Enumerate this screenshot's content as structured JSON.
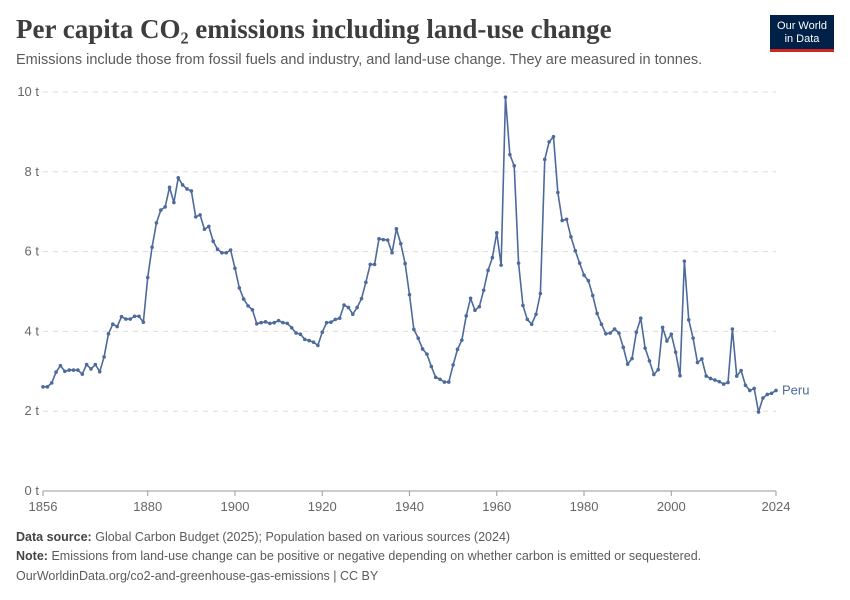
{
  "header": {
    "title": "Per capita CO₂ emissions including land-use change",
    "subtitle": "Emissions include those from fossil fuels and industry, and land-use change. They are measured in tonnes.",
    "logo_line1": "Our World",
    "logo_line2": "in Data"
  },
  "footer": {
    "source_label": "Data source:",
    "source_text": "Global Carbon Budget (2025); Population based on various sources (2024)",
    "note_label": "Note:",
    "note_text": "Emissions from land-use change can be positive or negative depending on whether carbon is emitted or sequestered.",
    "url": "OurWorldinData.org/co2-and-greenhouse-gas-emissions | CC BY"
  },
  "colors": {
    "series": "#4c6a9c",
    "grid": "#dddddd",
    "axis": "#666666",
    "logo_bg": "#002147",
    "logo_accent": "#ce261e"
  },
  "chart_data": {
    "type": "line",
    "xlim": [
      1856,
      2024
    ],
    "ylim": [
      0,
      10
    ],
    "x_ticks": [
      1856,
      1880,
      1900,
      1920,
      1940,
      1960,
      1980,
      2000,
      2024
    ],
    "y_ticks": [
      0,
      2,
      4,
      6,
      8,
      10
    ],
    "y_tick_labels": [
      "0 t",
      "2 t",
      "4 t",
      "6 t",
      "8 t",
      "10 t"
    ],
    "grid": "horizontal dashed",
    "series": [
      {
        "name": "Peru",
        "x_start": 1856,
        "values": [
          2.61,
          2.61,
          2.71,
          2.98,
          3.14,
          3.0,
          3.03,
          3.03,
          3.03,
          2.93,
          3.17,
          3.06,
          3.17,
          2.99,
          3.36,
          3.94,
          4.18,
          4.12,
          4.37,
          4.31,
          4.31,
          4.38,
          4.38,
          4.23,
          5.35,
          6.11,
          6.72,
          7.04,
          7.12,
          7.61,
          7.23,
          7.85,
          7.67,
          7.57,
          7.52,
          6.87,
          6.92,
          6.56,
          6.63,
          6.26,
          6.06,
          5.97,
          5.97,
          6.04,
          5.58,
          5.09,
          4.81,
          4.64,
          4.54,
          4.19,
          4.22,
          4.24,
          4.2,
          4.22,
          4.27,
          4.22,
          4.2,
          4.09,
          3.96,
          3.93,
          3.8,
          3.77,
          3.73,
          3.65,
          3.98,
          4.22,
          4.23,
          4.3,
          4.33,
          4.66,
          4.6,
          4.43,
          4.6,
          4.82,
          5.23,
          5.68,
          5.68,
          6.32,
          6.3,
          6.29,
          5.97,
          6.57,
          6.2,
          5.7,
          4.92,
          4.05,
          3.83,
          3.56,
          3.43,
          3.12,
          2.85,
          2.8,
          2.73,
          2.73,
          3.16,
          3.55,
          3.78,
          4.39,
          4.83,
          4.53,
          4.62,
          5.03,
          5.53,
          5.85,
          6.47,
          5.66,
          9.87,
          8.43,
          8.15,
          5.71,
          4.65,
          4.3,
          4.18,
          4.43,
          4.95,
          8.31,
          8.75,
          8.88,
          7.48,
          6.78,
          6.81,
          6.37,
          6.02,
          5.71,
          5.41,
          5.27,
          4.9,
          4.45,
          4.18,
          3.94,
          3.96,
          4.06,
          3.96,
          3.6,
          3.18,
          3.32,
          3.98,
          4.33,
          3.58,
          3.26,
          2.92,
          3.04,
          4.1,
          3.76,
          3.93,
          3.48,
          2.89,
          5.76,
          4.29,
          3.83,
          3.22,
          3.31,
          2.88,
          2.82,
          2.78,
          2.74,
          2.68,
          2.72,
          4.06,
          2.88,
          3.02,
          2.65,
          2.52,
          2.57,
          1.98,
          2.33,
          2.42,
          2.45,
          2.52
        ]
      }
    ]
  }
}
